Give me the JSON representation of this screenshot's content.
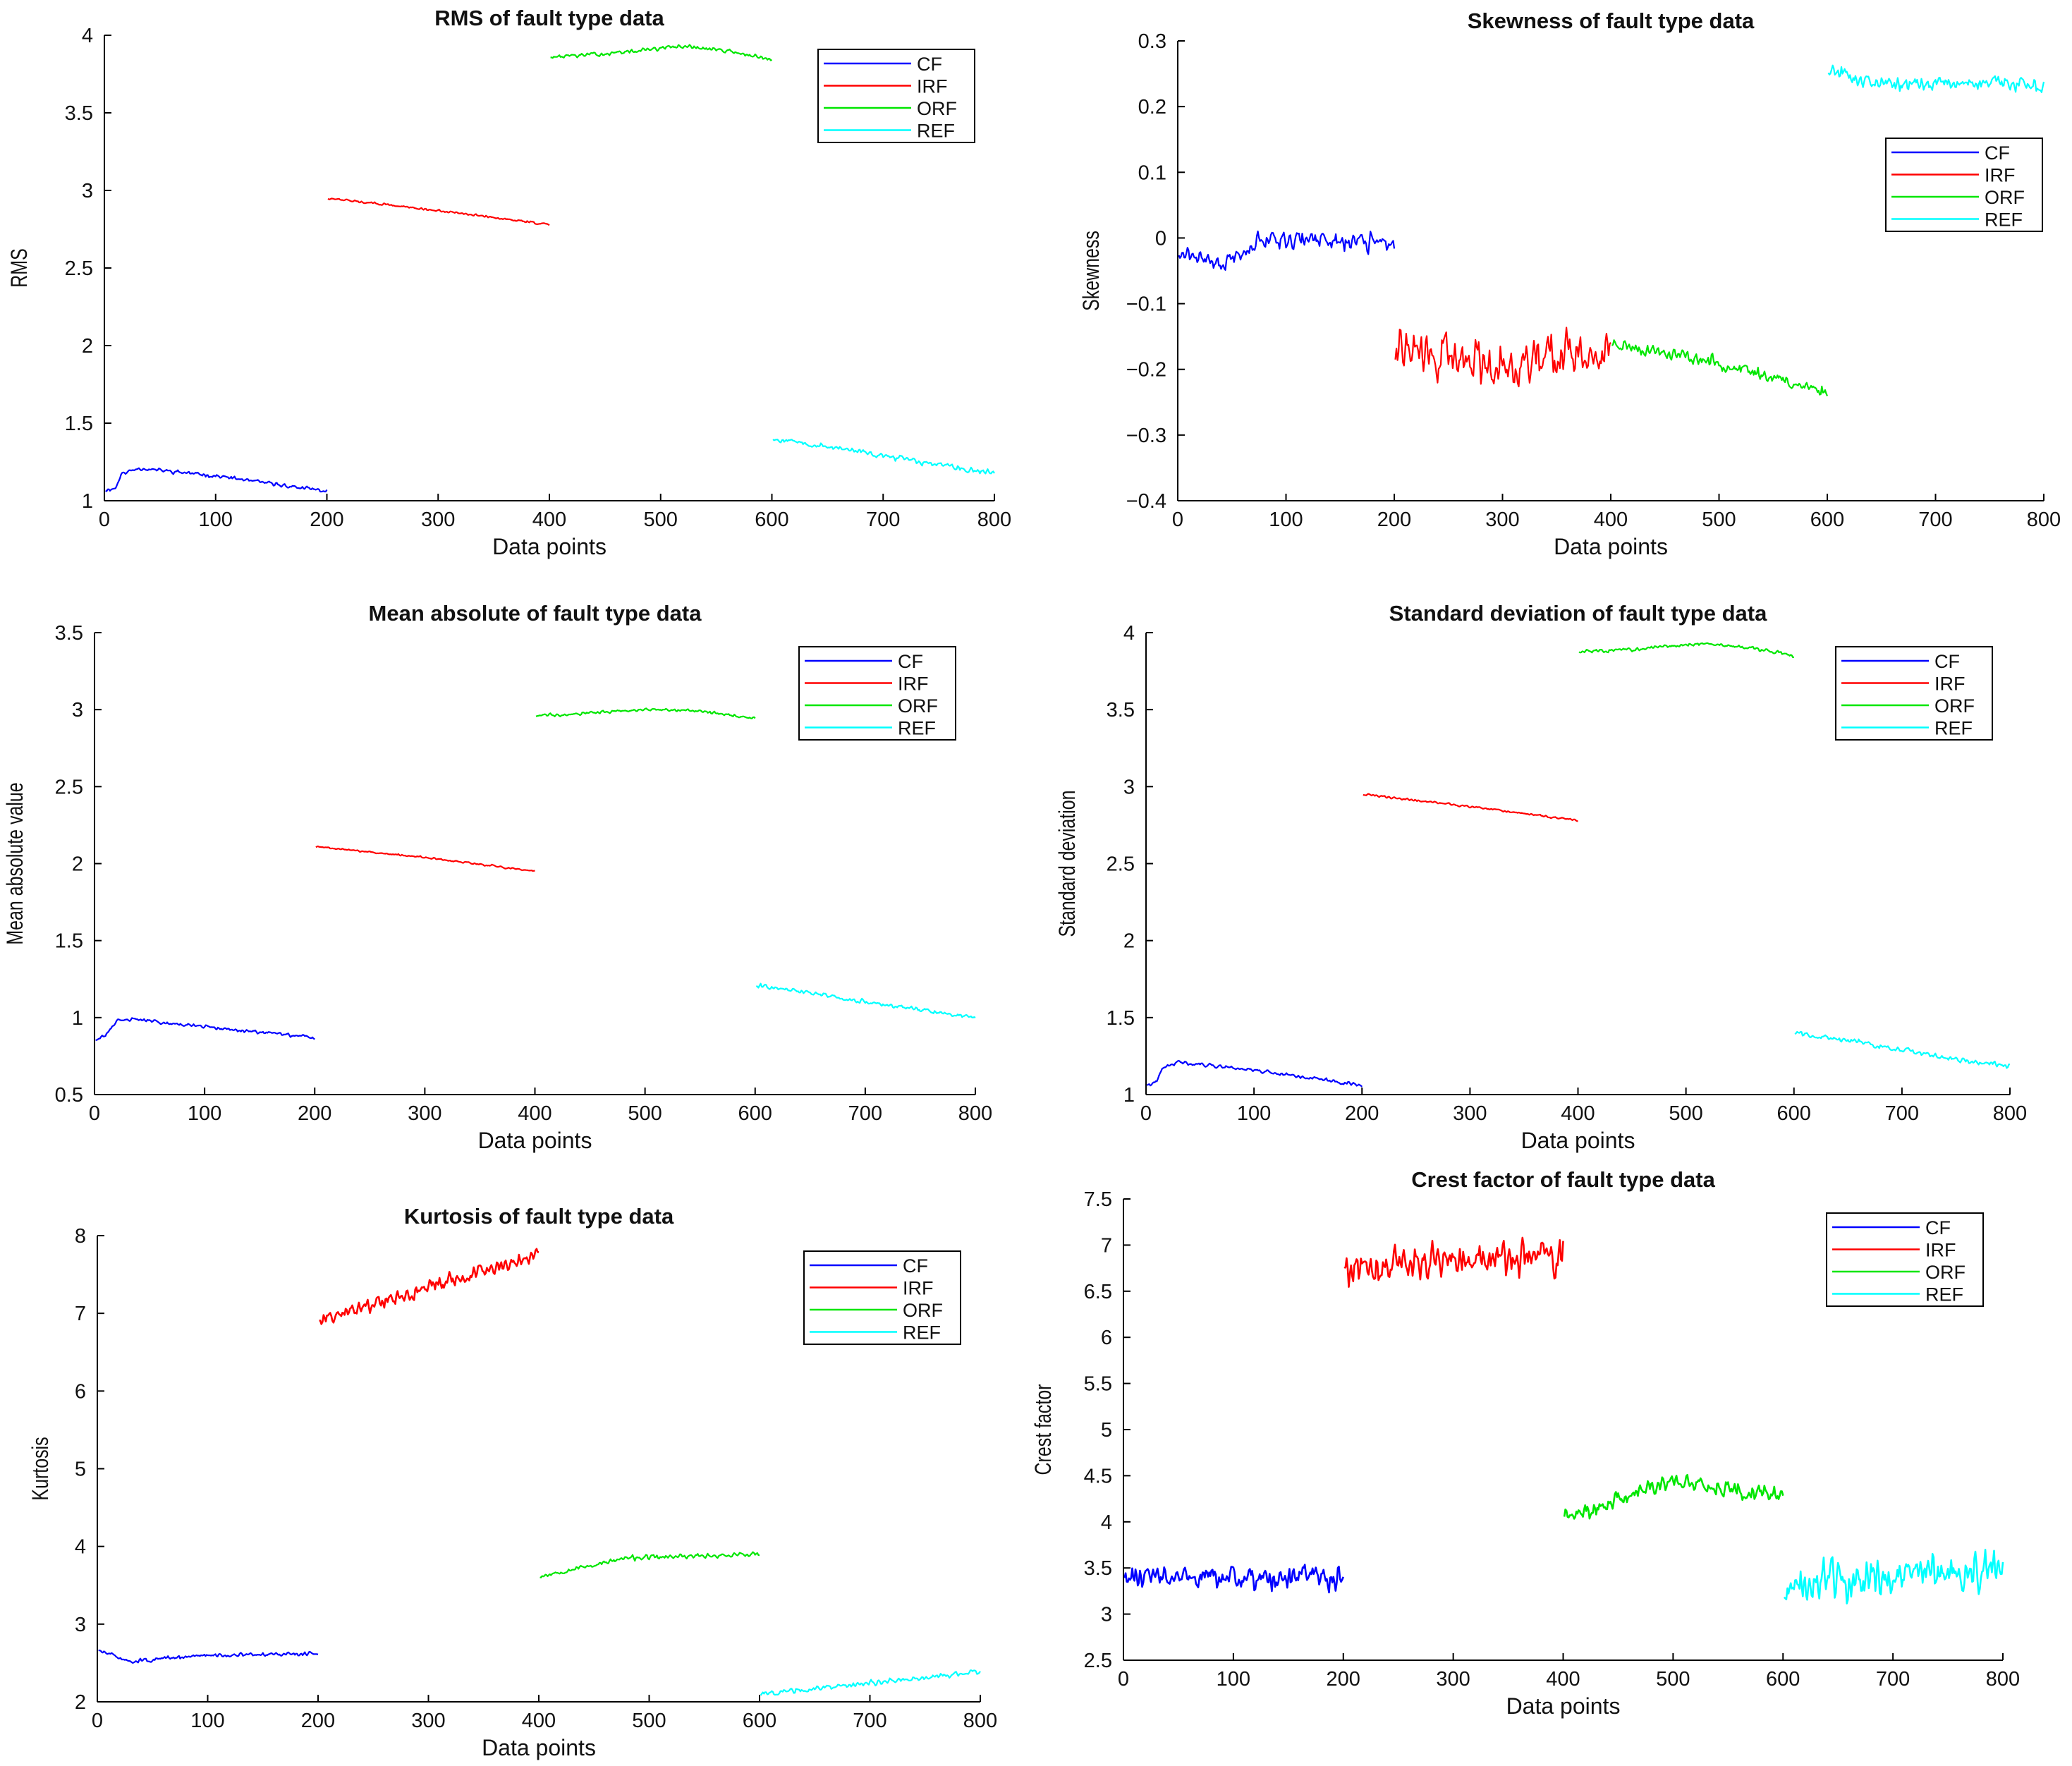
{
  "colors": {
    "CF": "#0000ff",
    "IRF": "#ff0000",
    "ORF": "#00e600",
    "REF": "#00ffff",
    "axis": "#000000"
  },
  "chart_data": [
    {
      "type": "line",
      "title": "RMS of fault type data",
      "xlabel": "Data points",
      "ylabel": "RMS",
      "xlim": [
        0,
        800
      ],
      "ylim": [
        1,
        4
      ],
      "xticks": [
        0,
        100,
        200,
        300,
        400,
        500,
        600,
        700,
        800
      ],
      "yticks": [
        1,
        1.5,
        2,
        2.5,
        3,
        3.5,
        4
      ],
      "legend": {
        "position": "top-right",
        "entries": [
          "CF",
          "IRF",
          "ORF",
          "REF"
        ]
      },
      "series": [
        {
          "name": "CF",
          "x_range": [
            1,
            200
          ],
          "anchors": [
            [
              1,
              1.07
            ],
            [
              10,
              1.08
            ],
            [
              15,
              1.17
            ],
            [
              30,
              1.21
            ],
            [
              60,
              1.19
            ],
            [
              100,
              1.16
            ],
            [
              150,
              1.11
            ],
            [
              200,
              1.06
            ]
          ],
          "noise": 0.012,
          "seed": 11
        },
        {
          "name": "IRF",
          "x_range": [
            201,
            400
          ],
          "anchors": [
            [
              201,
              2.95
            ],
            [
              300,
              2.87
            ],
            [
              400,
              2.78
            ]
          ],
          "noise": 0.007,
          "seed": 12
        },
        {
          "name": "ORF",
          "x_range": [
            401,
            600
          ],
          "anchors": [
            [
              401,
              3.86
            ],
            [
              450,
              3.88
            ],
            [
              520,
              3.93
            ],
            [
              560,
              3.9
            ],
            [
              600,
              3.84
            ]
          ],
          "noise": 0.012,
          "seed": 13
        },
        {
          "name": "REF",
          "x_range": [
            601,
            800
          ],
          "anchors": [
            [
              601,
              1.4
            ],
            [
              650,
              1.35
            ],
            [
              700,
              1.29
            ],
            [
              750,
              1.23
            ],
            [
              800,
              1.18
            ]
          ],
          "noise": 0.018,
          "seed": 14
        }
      ]
    },
    {
      "type": "line",
      "title": "Skewness of fault type data",
      "xlabel": "Data points",
      "ylabel": "Skewness",
      "xlim": [
        0,
        800
      ],
      "ylim": [
        -0.4,
        0.3
      ],
      "xticks": [
        0,
        100,
        200,
        300,
        400,
        500,
        600,
        700,
        800
      ],
      "yticks": [
        -0.4,
        -0.3,
        -0.2,
        -0.1,
        0,
        0.1,
        0.2,
        0.3
      ],
      "legend": {
        "position": "top-right",
        "entries": [
          "CF",
          "IRF",
          "ORF",
          "REF"
        ]
      },
      "series": [
        {
          "name": "CF",
          "x_range": [
            1,
            200
          ],
          "anchors": [
            [
              1,
              -0.02
            ],
            [
              40,
              -0.04
            ],
            [
              80,
              0.0
            ],
            [
              150,
              -0.005
            ],
            [
              200,
              -0.01
            ]
          ],
          "noise": 0.013,
          "seed": 21
        },
        {
          "name": "IRF",
          "x_range": [
            201,
            400
          ],
          "anchors": [
            [
              201,
              -0.17
            ],
            [
              300,
              -0.19
            ],
            [
              400,
              -0.17
            ]
          ],
          "noise": 0.035,
          "seed": 22
        },
        {
          "name": "ORF",
          "x_range": [
            401,
            600
          ],
          "anchors": [
            [
              401,
              -0.16
            ],
            [
              500,
              -0.19
            ],
            [
              600,
              -0.235
            ]
          ],
          "noise": 0.01,
          "seed": 23
        },
        {
          "name": "REF",
          "x_range": [
            601,
            800
          ],
          "anchors": [
            [
              601,
              0.255
            ],
            [
              650,
              0.235
            ],
            [
              800,
              0.235
            ]
          ],
          "noise": 0.012,
          "seed": 24
        }
      ]
    },
    {
      "type": "line",
      "title": "Mean absolute of fault type data",
      "xlabel": "Data points",
      "ylabel": "Mean absolute value",
      "xlim": [
        0,
        800
      ],
      "ylim": [
        0.5,
        3.5
      ],
      "xticks": [
        0,
        100,
        200,
        300,
        400,
        500,
        600,
        700,
        800
      ],
      "yticks": [
        0.5,
        1,
        1.5,
        2,
        2.5,
        3,
        3.5
      ],
      "legend": {
        "position": "top-right",
        "entries": [
          "CF",
          "IRF",
          "ORF",
          "REF"
        ]
      },
      "series": [
        {
          "name": "CF",
          "x_range": [
            1,
            200
          ],
          "anchors": [
            [
              1,
              0.86
            ],
            [
              10,
              0.88
            ],
            [
              20,
              0.98
            ],
            [
              35,
              0.99
            ],
            [
              100,
              0.94
            ],
            [
              200,
              0.87
            ]
          ],
          "noise": 0.011,
          "seed": 31
        },
        {
          "name": "IRF",
          "x_range": [
            201,
            400
          ],
          "anchors": [
            [
              201,
              2.11
            ],
            [
              300,
              2.04
            ],
            [
              400,
              1.95
            ]
          ],
          "noise": 0.006,
          "seed": 32
        },
        {
          "name": "ORF",
          "x_range": [
            401,
            600
          ],
          "anchors": [
            [
              401,
              2.96
            ],
            [
              500,
              3.0
            ],
            [
              540,
              3.0
            ],
            [
              600,
              2.94
            ]
          ],
          "noise": 0.01,
          "seed": 33
        },
        {
          "name": "REF",
          "x_range": [
            601,
            800
          ],
          "anchors": [
            [
              601,
              1.21
            ],
            [
              650,
              1.16
            ],
            [
              700,
              1.1
            ],
            [
              800,
              1.0
            ]
          ],
          "noise": 0.015,
          "seed": 34
        }
      ]
    },
    {
      "type": "line",
      "title": "Standard deviation of fault type data",
      "xlabel": "Data points",
      "ylabel": "Standard deviation",
      "xlim": [
        0,
        800
      ],
      "ylim": [
        1,
        4
      ],
      "xticks": [
        0,
        100,
        200,
        300,
        400,
        500,
        600,
        700,
        800
      ],
      "yticks": [
        1,
        1.5,
        2,
        2.5,
        3,
        3.5,
        4
      ],
      "legend": {
        "position": "top-right",
        "entries": [
          "CF",
          "IRF",
          "ORF",
          "REF"
        ]
      },
      "series": [
        {
          "name": "CF",
          "x_range": [
            1,
            200
          ],
          "anchors": [
            [
              1,
              1.06
            ],
            [
              10,
              1.08
            ],
            [
              15,
              1.17
            ],
            [
              30,
              1.21
            ],
            [
              60,
              1.19
            ],
            [
              100,
              1.16
            ],
            [
              150,
              1.11
            ],
            [
              200,
              1.06
            ]
          ],
          "noise": 0.012,
          "seed": 41
        },
        {
          "name": "IRF",
          "x_range": [
            201,
            400
          ],
          "anchors": [
            [
              201,
              2.95
            ],
            [
              300,
              2.87
            ],
            [
              400,
              2.78
            ]
          ],
          "noise": 0.007,
          "seed": 42
        },
        {
          "name": "ORF",
          "x_range": [
            401,
            600
          ],
          "anchors": [
            [
              401,
              3.88
            ],
            [
              450,
              3.89
            ],
            [
              520,
              3.93
            ],
            [
              560,
              3.9
            ],
            [
              600,
              3.85
            ]
          ],
          "noise": 0.012,
          "seed": 43
        },
        {
          "name": "REF",
          "x_range": [
            601,
            800
          ],
          "anchors": [
            [
              601,
              1.4
            ],
            [
              650,
              1.35
            ],
            [
              700,
              1.29
            ],
            [
              750,
              1.23
            ],
            [
              800,
              1.18
            ]
          ],
          "noise": 0.018,
          "seed": 44
        }
      ]
    },
    {
      "type": "line",
      "title": "Kurtosis of fault type data",
      "xlabel": "Data points",
      "ylabel": "Kurtosis",
      "xlim": [
        0,
        800
      ],
      "ylim": [
        2,
        8
      ],
      "xticks": [
        0,
        100,
        200,
        300,
        400,
        500,
        600,
        700,
        800
      ],
      "yticks": [
        2,
        3,
        4,
        5,
        6,
        7,
        8
      ],
      "legend": {
        "position": "top-right",
        "entries": [
          "CF",
          "IRF",
          "ORF",
          "REF"
        ]
      },
      "series": [
        {
          "name": "CF",
          "x_range": [
            1,
            200
          ],
          "anchors": [
            [
              1,
              2.66
            ],
            [
              30,
              2.52
            ],
            [
              100,
              2.6
            ],
            [
              200,
              2.62
            ]
          ],
          "noise": 0.025,
          "seed": 51
        },
        {
          "name": "IRF",
          "x_range": [
            201,
            400
          ],
          "anchors": [
            [
              201,
              6.9
            ],
            [
              300,
              7.35
            ],
            [
              400,
              7.75
            ]
          ],
          "noise": 0.09,
          "seed": 52
        },
        {
          "name": "ORF",
          "x_range": [
            401,
            600
          ],
          "anchors": [
            [
              401,
              3.62
            ],
            [
              480,
              3.85
            ],
            [
              600,
              3.9
            ]
          ],
          "noise": 0.03,
          "seed": 53
        },
        {
          "name": "REF",
          "x_range": [
            601,
            800
          ],
          "anchors": [
            [
              601,
              2.1
            ],
            [
              700,
              2.24
            ],
            [
              800,
              2.38
            ]
          ],
          "noise": 0.035,
          "seed": 54
        }
      ]
    },
    {
      "type": "line",
      "title": "Crest factor of fault type data",
      "xlabel": "Data points",
      "ylabel": "Crest factor",
      "xlim": [
        0,
        800
      ],
      "ylim": [
        2.5,
        7.5
      ],
      "xticks": [
        0,
        100,
        200,
        300,
        400,
        500,
        600,
        700,
        800
      ],
      "yticks": [
        2.5,
        3,
        3.5,
        4,
        4.5,
        5,
        5.5,
        6,
        6.5,
        7,
        7.5
      ],
      "legend": {
        "position": "top-right",
        "entries": [
          "CF",
          "IRF",
          "ORF",
          "REF"
        ]
      },
      "series": [
        {
          "name": "CF",
          "x_range": [
            1,
            200
          ],
          "anchors": [
            [
              1,
              3.4
            ],
            [
              100,
              3.38
            ],
            [
              200,
              3.4
            ]
          ],
          "noise": 0.13,
          "seed": 61
        },
        {
          "name": "IRF",
          "x_range": [
            201,
            400
          ],
          "anchors": [
            [
              201,
              6.75
            ],
            [
              300,
              6.85
            ],
            [
              400,
              6.9
            ]
          ],
          "noise": 0.18,
          "seed": 62
        },
        {
          "name": "ORF",
          "x_range": [
            401,
            600
          ],
          "anchors": [
            [
              401,
              4.05
            ],
            [
              500,
              4.45
            ],
            [
              600,
              4.3
            ]
          ],
          "noise": 0.09,
          "seed": 63
        },
        {
          "name": "REF",
          "x_range": [
            601,
            800
          ],
          "anchors": [
            [
              601,
              3.3
            ],
            [
              700,
              3.4
            ],
            [
              800,
              3.55
            ]
          ],
          "noise": 0.22,
          "seed": 64
        }
      ]
    }
  ]
}
